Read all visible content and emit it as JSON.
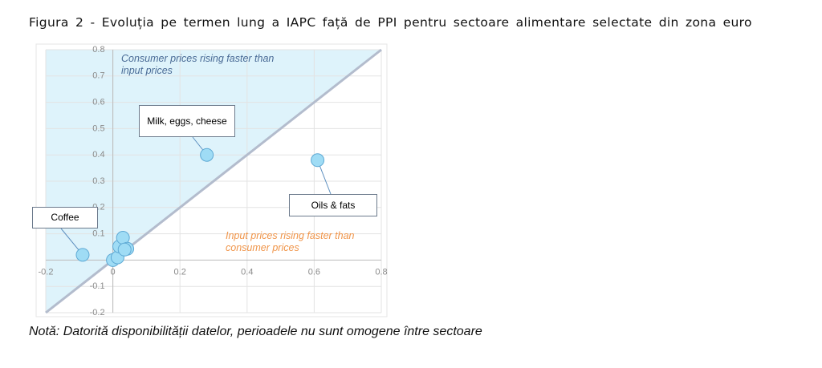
{
  "chart_data": {
    "type": "scatter",
    "title": "Figura 2 - Evoluția pe termen lung a IAPC față de PPI pentru sectoare alimentare selectate din zona euro",
    "note": "Notă: Datorită disponibilității datelor, perioadele nu sunt omogene între sectoare",
    "annotations": [
      "Consumer prices rising faster than input prices",
      "Input prices rising faster than consumer prices"
    ],
    "x": [
      -0.09,
      0.28,
      0.61,
      0.0,
      0.014,
      0.019,
      0.03,
      0.043,
      0.035
    ],
    "values": [
      0.02,
      0.4,
      0.38,
      0.0,
      0.01,
      0.052,
      0.085,
      0.043,
      0.04
    ],
    "point_labels": [
      "Coffee",
      "Milk, eggs, cheese",
      "Oils & fats",
      null,
      null,
      null,
      null,
      null,
      null
    ],
    "color": "#9fdcf5",
    "xlim": [
      -0.2,
      0.8
    ],
    "ylim": [
      -0.2,
      0.8
    ],
    "xticks": [
      -0.2,
      0,
      0.2,
      0.4,
      0.6,
      0.8
    ],
    "yticks": [
      -0.2,
      -0.1,
      0.1,
      0.2,
      0.3,
      0.4,
      0.5,
      0.6,
      0.7,
      0.8
    ],
    "grid": true
  }
}
